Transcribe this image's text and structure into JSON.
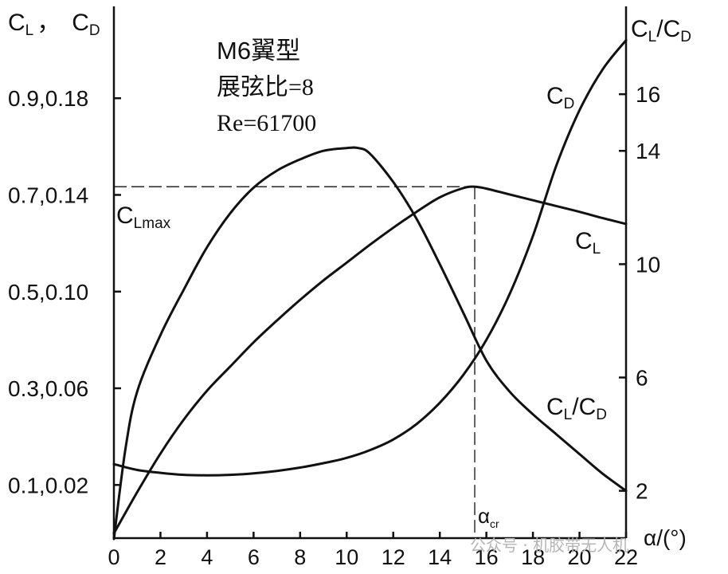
{
  "chart_data": {
    "type": "line",
    "left_axis_label": {
      "c": "C",
      "sub1": "L",
      "sep": "，",
      "c2": "C",
      "sub2": "D"
    },
    "right_axis_label": {
      "c": "C",
      "sub1": "L",
      "slash": "/",
      "c2": "C",
      "sub2": "D"
    },
    "xlabel": "α/(°)",
    "xlim": [
      0,
      22
    ],
    "x_ticks": [
      "0",
      "2",
      "4",
      "6",
      "8",
      "10",
      "12",
      "14",
      "16",
      "18",
      "20",
      "22"
    ],
    "left_ticks": [
      {
        "cl": 0.1,
        "label": "0.1,0.02"
      },
      {
        "cl": 0.3,
        "label": "0.3,0.06"
      },
      {
        "cl": 0.5,
        "label": "0.5,0.10"
      },
      {
        "cl": 0.7,
        "label": "0.7,0.14"
      },
      {
        "cl": 0.9,
        "label": "0.9,0.18"
      }
    ],
    "cl_range": [
      -0.01,
      1.09
    ],
    "right_ticks": [
      "2",
      "6",
      "10",
      "14",
      "16"
    ],
    "right_ylim": [
      0.33,
      19.1
    ],
    "info": [
      "M6翼型",
      "展弦比=8",
      "Re=61700"
    ],
    "series": [
      {
        "name": "CL",
        "label": {
          "c": "C",
          "sub": "L"
        },
        "axis": "left_cl",
        "points": [
          [
            0,
            0.0
          ],
          [
            1,
            0.085
          ],
          [
            2,
            0.165
          ],
          [
            3,
            0.235
          ],
          [
            4,
            0.295
          ],
          [
            5,
            0.345
          ],
          [
            6,
            0.395
          ],
          [
            7,
            0.44
          ],
          [
            8,
            0.483
          ],
          [
            9,
            0.523
          ],
          [
            10,
            0.56
          ],
          [
            11,
            0.597
          ],
          [
            12,
            0.632
          ],
          [
            13,
            0.665
          ],
          [
            14,
            0.695
          ],
          [
            15,
            0.714
          ],
          [
            15.5,
            0.717
          ],
          [
            16,
            0.713
          ],
          [
            17,
            0.701
          ],
          [
            18,
            0.689
          ],
          [
            19,
            0.677
          ],
          [
            20,
            0.665
          ],
          [
            21,
            0.652
          ],
          [
            22,
            0.64
          ]
        ]
      },
      {
        "name": "CD",
        "label": {
          "c": "C",
          "sub": "D"
        },
        "axis": "left_cd",
        "points": [
          [
            0,
            0.0286
          ],
          [
            1,
            0.0262
          ],
          [
            2,
            0.025
          ],
          [
            3,
            0.0242
          ],
          [
            4,
            0.024
          ],
          [
            5,
            0.0242
          ],
          [
            6,
            0.0248
          ],
          [
            7,
            0.0258
          ],
          [
            8,
            0.0272
          ],
          [
            9,
            0.029
          ],
          [
            10,
            0.0312
          ],
          [
            11,
            0.0344
          ],
          [
            12,
            0.0388
          ],
          [
            13,
            0.0452
          ],
          [
            14,
            0.054
          ],
          [
            15,
            0.0654
          ],
          [
            16,
            0.08
          ],
          [
            17,
            0.099
          ],
          [
            18,
            0.123
          ],
          [
            19,
            0.152
          ],
          [
            20,
            0.175
          ],
          [
            21,
            0.192
          ],
          [
            22,
            0.204
          ]
        ]
      },
      {
        "name": "CL/CD",
        "label": {
          "c": "C",
          "sub1": "L",
          "slash": "/",
          "c2": "C",
          "sub2": "D"
        },
        "axis": "right",
        "points": [
          [
            0,
            0.3
          ],
          [
            0.5,
            3.5
          ],
          [
            1,
            5.5
          ],
          [
            2,
            7.5
          ],
          [
            3,
            9.1
          ],
          [
            4,
            10.6
          ],
          [
            5,
            11.8
          ],
          [
            6,
            12.7
          ],
          [
            7,
            13.3
          ],
          [
            8,
            13.7
          ],
          [
            9,
            14.0
          ],
          [
            10,
            14.1
          ],
          [
            10.5,
            14.1
          ],
          [
            11,
            13.9
          ],
          [
            12,
            12.9
          ],
          [
            13,
            11.6
          ],
          [
            14,
            10.0
          ],
          [
            15,
            8.3
          ],
          [
            16,
            6.6
          ],
          [
            17,
            5.5
          ],
          [
            18,
            4.7
          ],
          [
            19,
            4.0
          ],
          [
            20,
            3.3
          ],
          [
            21,
            2.6
          ],
          [
            22,
            2.0
          ]
        ]
      }
    ],
    "annotations": {
      "clmax": {
        "c": "C",
        "sub": "Lmax",
        "alpha": 15.5,
        "cl": 0.717
      },
      "alpha_cr": {
        "symbol": "α",
        "sub": "cr",
        "alpha": 15.5
      }
    }
  },
  "watermark": "公众号 · 机胶带无人机"
}
